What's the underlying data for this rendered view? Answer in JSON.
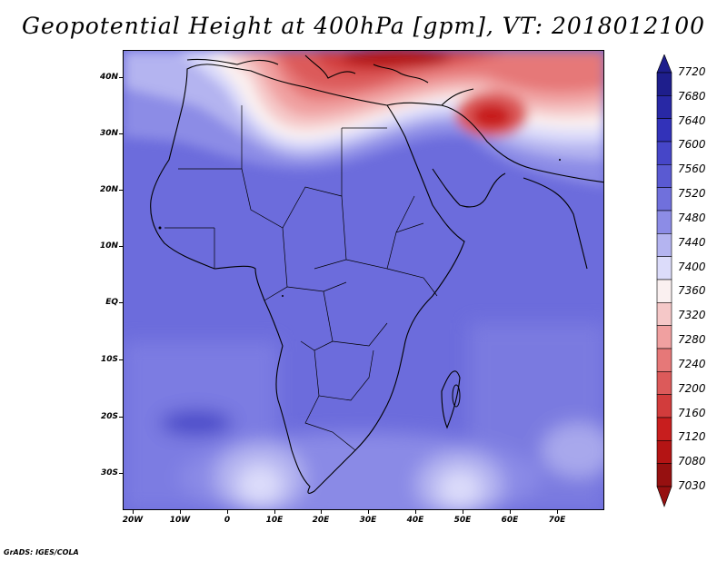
{
  "title": "Geopotential Height at 400hPa [gpm], VT: 2018012100",
  "footer": "GrADS: IGES/COLA",
  "chart_data": {
    "type": "heatmap",
    "variable": "Geopotential Height at 400hPa",
    "units": "gpm",
    "valid_time": "2018012100",
    "lon_range": [
      -24,
      80
    ],
    "lat_range": [
      -36,
      45
    ],
    "x_ticks": [
      "20W",
      "10W",
      "0",
      "10E",
      "20E",
      "30E",
      "40E",
      "50E",
      "60E",
      "70E"
    ],
    "y_ticks": [
      "40N",
      "30N",
      "20N",
      "10N",
      "EQ",
      "10S",
      "20S",
      "30S"
    ],
    "colorbar_levels": [
      "7720",
      "7680",
      "7640",
      "7600",
      "7560",
      "7520",
      "7480",
      "7440",
      "7400",
      "7360",
      "7320",
      "7280",
      "7240",
      "7200",
      "7160",
      "7120",
      "7080",
      "7030"
    ],
    "colorbar_colors": [
      "#1e1e8c",
      "#2828a5",
      "#3232b9",
      "#4646c8",
      "#5a5ad2",
      "#7070dc",
      "#8c8ce6",
      "#b4b4f0",
      "#dcdcfa",
      "#faf0f0",
      "#f5c8c8",
      "#f0a0a0",
      "#e67878",
      "#dc5a5a",
      "#d23c3c",
      "#c81e1e",
      "#b41414",
      "#961010"
    ]
  }
}
